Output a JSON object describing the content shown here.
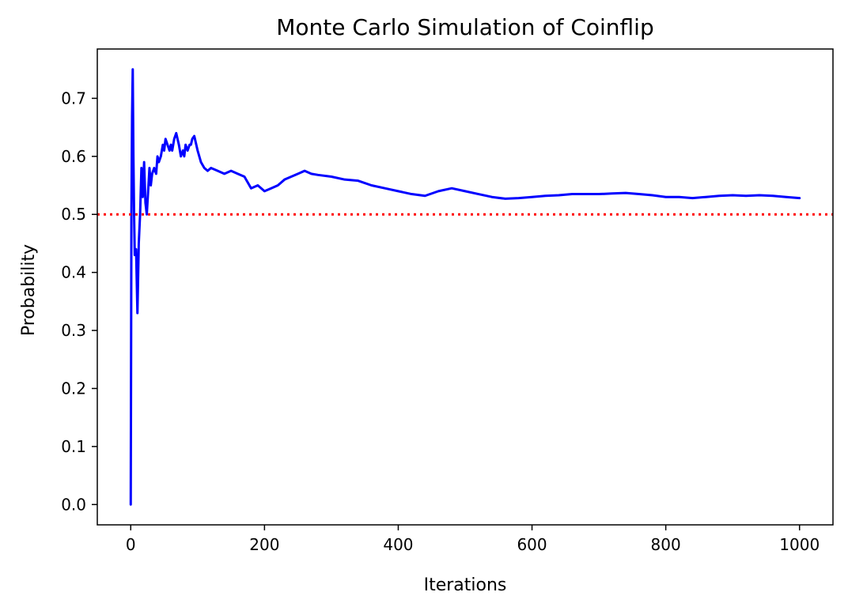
{
  "chart_data": {
    "type": "line",
    "title": "Monte Carlo Simulation of Coinflip",
    "xlabel": "Iterations",
    "ylabel": "Probability",
    "xlim": [
      -50,
      1050
    ],
    "ylim": [
      -0.035,
      0.785
    ],
    "grid": false,
    "x_ticks": [
      0,
      200,
      400,
      600,
      800,
      1000
    ],
    "x_tick_labels": [
      "0",
      "200",
      "400",
      "600",
      "800",
      "1000"
    ],
    "y_ticks": [
      0.0,
      0.1,
      0.2,
      0.3,
      0.4,
      0.5,
      0.6,
      0.7
    ],
    "y_tick_labels": [
      "0.0",
      "0.1",
      "0.2",
      "0.3",
      "0.4",
      "0.5",
      "0.6",
      "0.7"
    ],
    "series": [
      {
        "color": "#0000ff",
        "style": "solid",
        "x": [
          0,
          1,
          2,
          3,
          4,
          5,
          6,
          8,
          10,
          12,
          14,
          16,
          18,
          20,
          22,
          24,
          26,
          28,
          30,
          32,
          35,
          38,
          40,
          42,
          45,
          48,
          50,
          52,
          55,
          58,
          60,
          62,
          65,
          68,
          70,
          72,
          75,
          78,
          80,
          82,
          85,
          88,
          90,
          92,
          95,
          98,
          100,
          105,
          110,
          115,
          120,
          130,
          140,
          150,
          160,
          170,
          180,
          190,
          200,
          210,
          220,
          230,
          240,
          250,
          260,
          270,
          280,
          300,
          320,
          340,
          360,
          380,
          400,
          420,
          440,
          460,
          480,
          500,
          520,
          540,
          560,
          580,
          600,
          620,
          640,
          660,
          680,
          700,
          720,
          740,
          760,
          780,
          800,
          820,
          840,
          860,
          880,
          900,
          920,
          940,
          960,
          980,
          1000
        ],
        "values": [
          0.0,
          0.5,
          0.67,
          0.75,
          0.6,
          0.5,
          0.43,
          0.44,
          0.33,
          0.45,
          0.5,
          0.58,
          0.53,
          0.59,
          0.52,
          0.5,
          0.54,
          0.58,
          0.55,
          0.57,
          0.58,
          0.57,
          0.6,
          0.59,
          0.6,
          0.62,
          0.61,
          0.63,
          0.62,
          0.61,
          0.62,
          0.61,
          0.63,
          0.64,
          0.63,
          0.62,
          0.6,
          0.61,
          0.6,
          0.62,
          0.61,
          0.62,
          0.62,
          0.63,
          0.635,
          0.62,
          0.61,
          0.59,
          0.58,
          0.575,
          0.58,
          0.575,
          0.57,
          0.575,
          0.57,
          0.565,
          0.545,
          0.55,
          0.54,
          0.545,
          0.55,
          0.56,
          0.565,
          0.57,
          0.575,
          0.57,
          0.568,
          0.565,
          0.56,
          0.558,
          0.55,
          0.545,
          0.54,
          0.535,
          0.532,
          0.54,
          0.545,
          0.54,
          0.535,
          0.53,
          0.527,
          0.528,
          0.53,
          0.532,
          0.533,
          0.535,
          0.535,
          0.535,
          0.536,
          0.537,
          0.535,
          0.533,
          0.53,
          0.53,
          0.528,
          0.53,
          0.532,
          0.533,
          0.532,
          0.533,
          0.532,
          0.53,
          0.528
        ]
      },
      {
        "color": "#ff0000",
        "style": "dotted",
        "type": "hline",
        "y": 0.5
      }
    ]
  }
}
